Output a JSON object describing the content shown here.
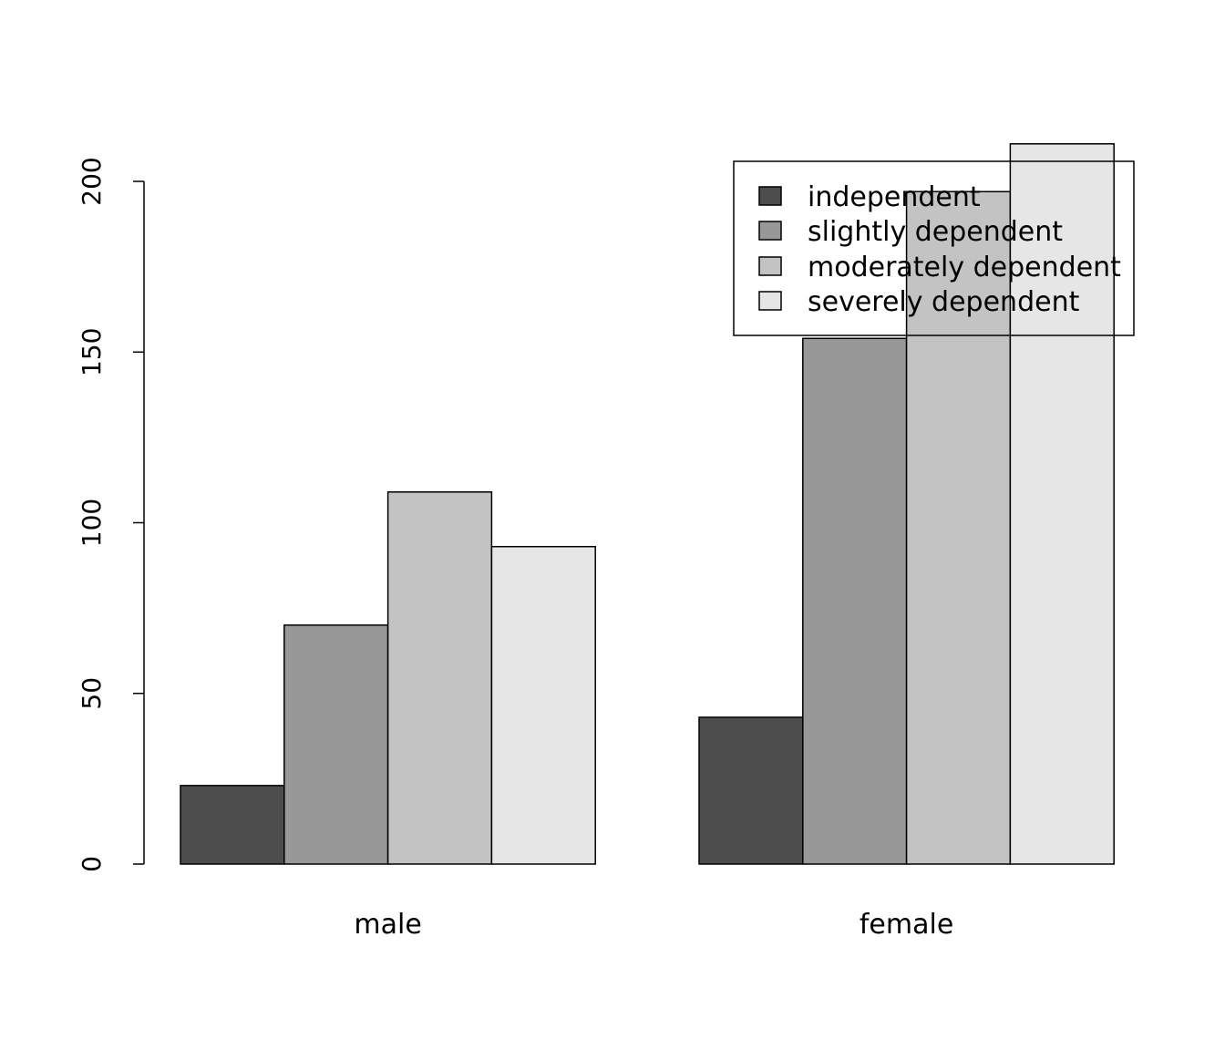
{
  "chart_data": {
    "type": "bar",
    "layout": "grouped",
    "title": "",
    "xlabel": "",
    "ylabel": "",
    "categories": [
      "male",
      "female"
    ],
    "series": [
      {
        "name": "independent",
        "values": [
          23,
          43
        ],
        "color": "#4d4d4d"
      },
      {
        "name": "slightly dependent",
        "values": [
          70,
          154
        ],
        "color": "#989898"
      },
      {
        "name": "moderately dependent",
        "values": [
          109,
          197
        ],
        "color": "#c3c3c3"
      },
      {
        "name": "severely dependent",
        "values": [
          93,
          211
        ],
        "color": "#e6e6e6"
      }
    ],
    "yticks": [
      0,
      50,
      100,
      150,
      200
    ],
    "ylim": [
      0,
      200
    ],
    "grid": false,
    "legend_position": "top-right"
  }
}
